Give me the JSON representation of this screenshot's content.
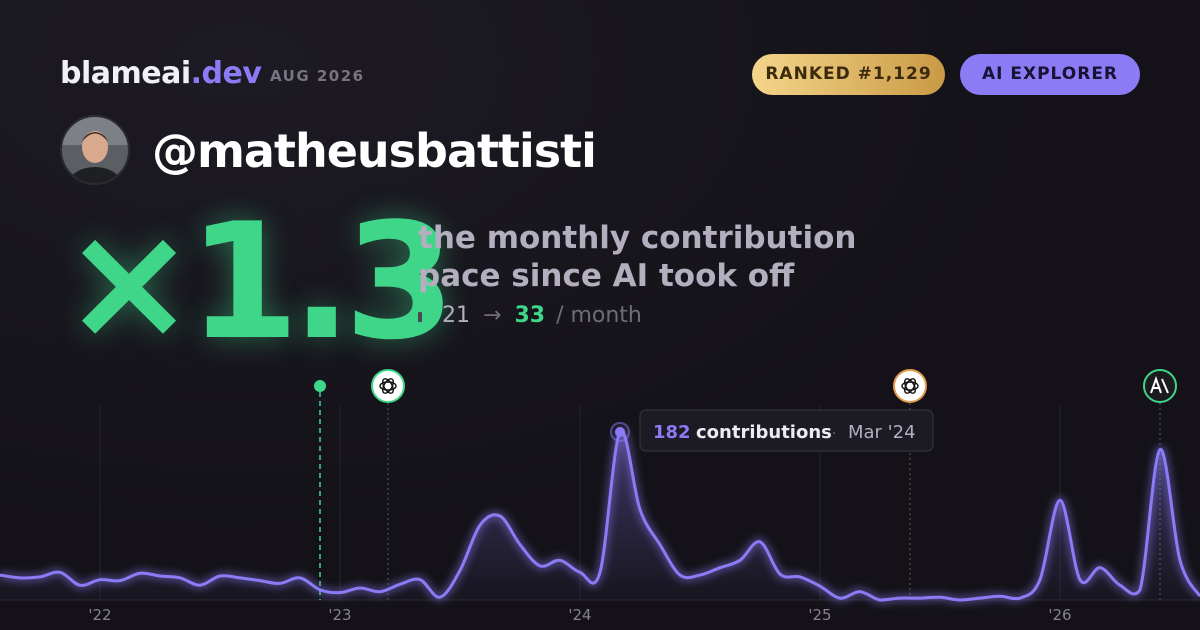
{
  "header": {
    "brand": "blameai",
    "brand_suffix": ".dev",
    "period": "AUG 2026",
    "rank_badge": "RANKED #1,129",
    "tier_badge": "AI EXPLORER"
  },
  "profile": {
    "handle": "@matheusbattisti"
  },
  "headline": {
    "multiplier": "×1.3",
    "description": [
      "the monthly contribution",
      "pace since AI took off"
    ],
    "before": 21,
    "arrow": "→",
    "after": 33,
    "unit": "/ month"
  },
  "chart_data": {
    "type": "area",
    "categories": [
      null,
      null,
      null,
      null,
      null,
      "'22",
      null,
      null,
      null,
      null,
      null,
      null,
      null,
      null,
      null,
      null,
      null,
      "'23",
      null,
      null,
      null,
      null,
      null,
      null,
      null,
      null,
      null,
      null,
      null,
      "'24",
      null,
      null,
      null,
      null,
      null,
      null,
      null,
      null,
      null,
      null,
      null,
      "'25",
      null,
      null,
      null,
      null,
      null,
      null,
      null,
      null,
      null,
      null,
      null,
      "'26",
      null,
      null,
      null,
      null,
      null,
      null,
      null
    ],
    "values": [
      27,
      24,
      25,
      30,
      16,
      22,
      21,
      29,
      26,
      24,
      16,
      26,
      24,
      21,
      18,
      24,
      11,
      8,
      13,
      9,
      17,
      22,
      3,
      32,
      81,
      91,
      60,
      37,
      43,
      30,
      30,
      182,
      98,
      60,
      27,
      27,
      35,
      43,
      63,
      28,
      25,
      15,
      2,
      9,
      0,
      2,
      2,
      3,
      0,
      2,
      4,
      2,
      22,
      108,
      22,
      35,
      16,
      11,
      163,
      43,
      4
    ],
    "color": "#8b7cf6",
    "tooltip": {
      "unit": "contributions",
      "separator": "·",
      "label": "Mar '24"
    }
  }
}
